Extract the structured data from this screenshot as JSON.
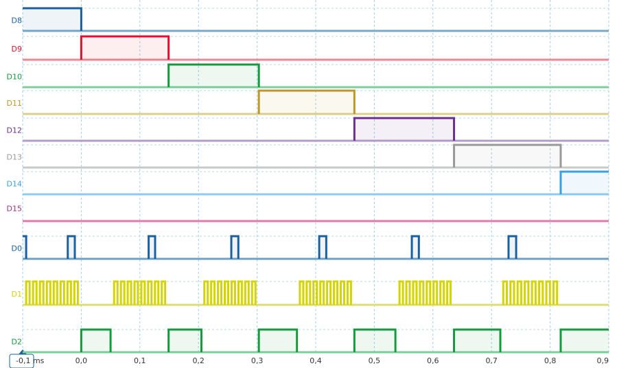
{
  "chart_data": {
    "type": "logic",
    "xlim": [
      -0.1,
      0.9
    ],
    "xticks": [
      {
        "value": -0.1,
        "label": "-0,1 ms"
      },
      {
        "value": 0.0,
        "label": "0,0"
      },
      {
        "value": 0.1,
        "label": "0,1"
      },
      {
        "value": 0.2,
        "label": "0,2"
      },
      {
        "value": 0.3,
        "label": "0,3"
      },
      {
        "value": 0.4,
        "label": "0,4"
      },
      {
        "value": 0.5,
        "label": "0,5"
      },
      {
        "value": 0.6,
        "label": "0,6"
      },
      {
        "value": 0.7,
        "label": "0,7"
      },
      {
        "value": 0.8,
        "label": "0,8"
      },
      {
        "value": 0.9,
        "label": "0,9"
      }
    ],
    "grid": true,
    "series": [
      {
        "name": "D8",
        "color": "#1a5fa0",
        "baseline_color": "#7aa7c7",
        "initial_high": true,
        "edges": [
          0.0
        ]
      },
      {
        "name": "D9",
        "color": "#e0102f",
        "baseline_color": "#f08595",
        "initial_high": false,
        "edges": [
          0.0,
          0.149
        ]
      },
      {
        "name": "D10",
        "color": "#149a3c",
        "baseline_color": "#7ccf9a",
        "initial_high": false,
        "edges": [
          0.149,
          0.303
        ]
      },
      {
        "name": "D11",
        "color": "#c0962a",
        "baseline_color": "#dccf8a",
        "initial_high": false,
        "edges": [
          0.303,
          0.466
        ]
      },
      {
        "name": "D12",
        "color": "#6b2f8f",
        "baseline_color": "#b59cc8",
        "initial_high": false,
        "edges": [
          0.466,
          0.636
        ]
      },
      {
        "name": "D13",
        "color": "#999999",
        "baseline_color": "#c8c8c8",
        "initial_high": false,
        "edges": [
          0.636,
          0.818
        ]
      },
      {
        "name": "D14",
        "color": "#3aa0e0",
        "baseline_color": "#8fcbed",
        "initial_high": false,
        "edges": [
          0.818
        ]
      },
      {
        "name": "D15",
        "color": "#a0337a",
        "baseline_color": "#e07aa8",
        "initial_high": false,
        "edges": []
      },
      {
        "name": "D0",
        "color": "#1a5fa0",
        "baseline_color": "#6fa0c8",
        "initial_high": true,
        "edges": [
          -0.094,
          -0.023,
          -0.011,
          0.115,
          0.126,
          0.256,
          0.268,
          0.406,
          0.418,
          0.564,
          0.576,
          0.729,
          0.742
        ]
      },
      {
        "name": "D1",
        "color": "#d4d400",
        "baseline_color": "#dede70",
        "pulses_per_burst": 8,
        "bursts": [
          [
            -0.094,
            0.0
          ],
          [
            0.056,
            0.149
          ],
          [
            0.21,
            0.303
          ],
          [
            0.373,
            0.466
          ],
          [
            0.543,
            0.636
          ],
          [
            0.72,
            0.818
          ]
        ]
      },
      {
        "name": "D2",
        "color": "#149a3c",
        "baseline_color": "#7ccf9a",
        "initial_high": false,
        "edges": [
          0.0,
          0.05,
          0.149,
          0.205,
          0.303,
          0.368,
          0.466,
          0.536,
          0.636,
          0.715,
          0.818
        ]
      }
    ]
  }
}
